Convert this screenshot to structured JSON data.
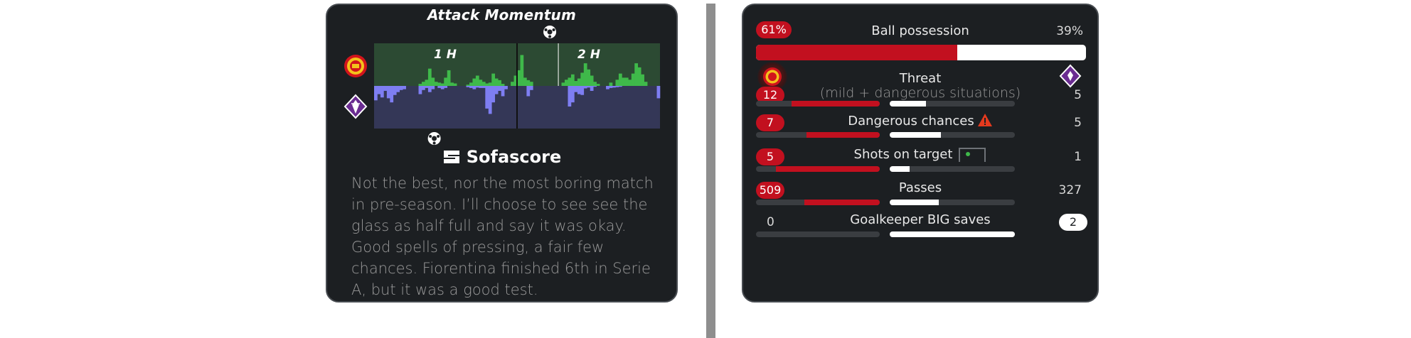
{
  "left_card": {
    "title": "Attack Momentum",
    "half_labels": [
      "1 H",
      "2 H"
    ],
    "brand": "Sofascore",
    "story": "Not the best, nor the most boring match in pre-season. I’ll choose to see see the glass as half full and say it was okay. Good spells of pressing, a fair few chances. Fiorentina finished 6th in Serie A, but it was a good test.",
    "home_goal_minutes": [
      58
    ],
    "away_goal_minutes": [
      12
    ]
  },
  "chart_data": {
    "type": "bar",
    "title": "Attack Momentum",
    "xlabel": "",
    "ylabel": "",
    "x_range": [
      0,
      90
    ],
    "y_range": [
      -100,
      100
    ],
    "half_labels": [
      "1 H",
      "2 H"
    ],
    "home_values": [
      0,
      0,
      0,
      0,
      0,
      0,
      0,
      0,
      0,
      0,
      0,
      0,
      0,
      0,
      5,
      10,
      15,
      42,
      20,
      10,
      8,
      6,
      20,
      38,
      8,
      6,
      0,
      0,
      0,
      3,
      8,
      18,
      25,
      15,
      10,
      6,
      8,
      30,
      18,
      14,
      5,
      0,
      0,
      10,
      25,
      38,
      75,
      20,
      14,
      10,
      0,
      0,
      0,
      0,
      0,
      0,
      0,
      0,
      0,
      8,
      15,
      20,
      28,
      12,
      18,
      32,
      55,
      40,
      25,
      10,
      5,
      0,
      0,
      0,
      8,
      0,
      15,
      30,
      20,
      20,
      15,
      30,
      55,
      45,
      28,
      10,
      0,
      0,
      0,
      0
    ],
    "away_values": [
      -35,
      -20,
      -28,
      -12,
      -30,
      -40,
      -22,
      -15,
      -10,
      -8,
      0,
      0,
      0,
      0,
      -20,
      -10,
      -5,
      -15,
      -8,
      0,
      -5,
      -8,
      -5,
      0,
      0,
      0,
      0,
      0,
      0,
      -3,
      -5,
      -8,
      -4,
      -5,
      -5,
      -55,
      -68,
      -40,
      -20,
      -12,
      -25,
      -8,
      0,
      0,
      0,
      0,
      0,
      0,
      -25,
      -10,
      0,
      0,
      0,
      0,
      0,
      0,
      0,
      0,
      0,
      0,
      0,
      -50,
      -40,
      -15,
      -20,
      -22,
      -6,
      -4,
      -12,
      -2,
      0,
      0,
      0,
      -8,
      -5,
      -4,
      -3,
      -2,
      0,
      0,
      0,
      0,
      0,
      0,
      0,
      0,
      0,
      0,
      0,
      -30
    ],
    "colors": {
      "home": "#3fb94a",
      "away": "#7e7ef2",
      "home_bg": "#2c4a33",
      "away_bg": "#343757",
      "goal_line": "#ffffff"
    }
  },
  "right_card": {
    "colors": {
      "home": "#c2101f",
      "away": "#ffffff",
      "track": "#3a3d41"
    },
    "possession": {
      "label": "Ball possession",
      "home": "61%",
      "away": "39%",
      "home_fraction": 0.61
    },
    "stats": [
      {
        "label": "Threat",
        "sub": "(mild + dangerous situations)",
        "home": "12",
        "away": "5",
        "home_fraction": 0.71,
        "away_fraction": 0.29,
        "highlight": "home"
      },
      {
        "label": "Dangerous chances",
        "home": "7",
        "away": "5",
        "home_fraction": 0.59,
        "away_fraction": 0.41,
        "highlight": "home",
        "icon": "warning-icon"
      },
      {
        "label": "Shots on target",
        "home": "5",
        "away": "1",
        "home_fraction": 0.84,
        "away_fraction": 0.16,
        "highlight": "home",
        "icon": "goal-frame-icon"
      },
      {
        "label": "Passes",
        "home": "509",
        "away": "327",
        "home_fraction": 0.61,
        "away_fraction": 0.39,
        "highlight": "home"
      },
      {
        "label": "Goalkeeper BIG saves",
        "home": "0",
        "away": "2",
        "home_fraction": 0.0,
        "away_fraction": 1.0,
        "highlight": "away"
      }
    ]
  },
  "teams": {
    "home_crest": "manchester-united-crest-icon",
    "away_crest": "fiorentina-crest-icon"
  }
}
